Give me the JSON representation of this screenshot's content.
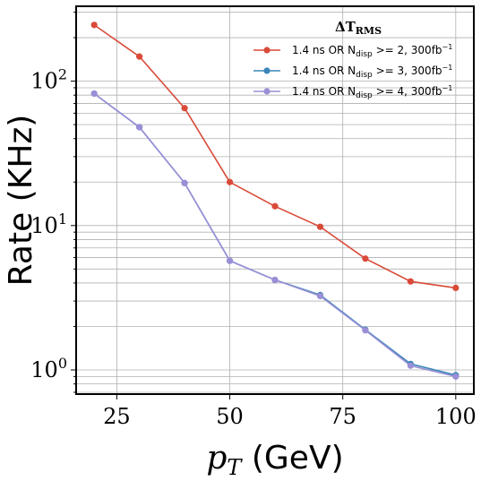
{
  "chart_data": {
    "type": "line",
    "xlabel": "p_T (GeV)",
    "xlabel_main": "p",
    "xlabel_sub": "T",
    "xlabel_unit": " (GeV)",
    "ylabel": "Rate (KHz)",
    "xlim": [
      16,
      104
    ],
    "ylim": [
      0.68,
      330
    ],
    "yscale": "log",
    "grid": true,
    "legend_title": "ΔT_RMS",
    "legend_title_main": "ΔT",
    "legend_title_sub": "RMS",
    "legend_position": "top-right",
    "x_ticks": [
      25,
      50,
      75,
      100
    ],
    "x_tick_labels": [
      "25",
      "50",
      "75",
      "100"
    ],
    "y_ticks": [
      1,
      10,
      100
    ],
    "y_tick_base": "10",
    "y_tick_exponents": [
      "0",
      "1",
      "2"
    ],
    "x": [
      20,
      30,
      40,
      50,
      60,
      70,
      80,
      90,
      100
    ],
    "series": [
      {
        "name": "1.4 ns OR N_disp >= 2, 300fb^-1",
        "label_prefix": "1.4 ns OR N",
        "label_sub": "disp",
        "label_mid": " >= 2, 300fb",
        "label_sup": "−1",
        "color": "#d94a38",
        "values": [
          245,
          148,
          65,
          20,
          13.6,
          9.8,
          5.9,
          4.1,
          3.7
        ]
      },
      {
        "name": "1.4 ns OR N_disp >= 3, 300fb^-1",
        "label_prefix": "1.4 ns OR N",
        "label_sub": "disp",
        "label_mid": " >= 3, 300fb",
        "label_sup": "−1",
        "color": "#3a87b9",
        "values": [
          82,
          48,
          19.7,
          5.7,
          4.2,
          3.3,
          1.9,
          1.1,
          0.92
        ]
      },
      {
        "name": "1.4 ns OR N_disp >= 4, 300fb^-1",
        "label_prefix": "1.4 ns OR N",
        "label_sub": "disp",
        "label_mid": " >= 4, 300fb",
        "label_sup": "−1",
        "color": "#9a8fd6",
        "values": [
          82,
          48,
          19.7,
          5.7,
          4.2,
          3.25,
          1.88,
          1.07,
          0.9
        ]
      }
    ]
  }
}
